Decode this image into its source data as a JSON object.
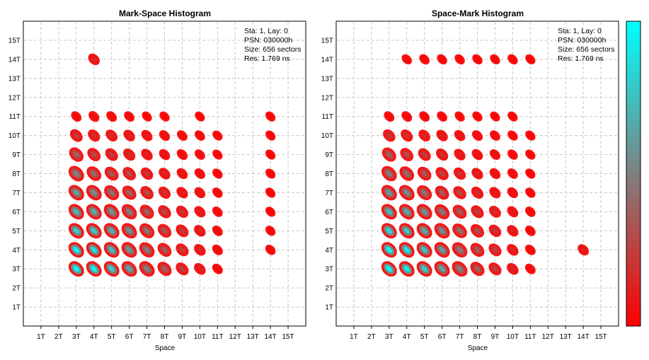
{
  "chart_data": [
    {
      "type": "heatmap",
      "title": "Mark-Space Histogram",
      "xlabel": "Space",
      "ylabel": "",
      "x_ticks": [
        "1T",
        "2T",
        "3T",
        "4T",
        "5T",
        "6T",
        "7T",
        "8T",
        "9T",
        "10T",
        "11T",
        "12T",
        "13T",
        "14T",
        "15T"
      ],
      "y_ticks": [
        "1T",
        "2T",
        "3T",
        "4T",
        "5T",
        "6T",
        "7T",
        "8T",
        "9T",
        "10T",
        "11T",
        "12T",
        "13T",
        "14T",
        "15T"
      ],
      "xlim": [
        0,
        16
      ],
      "ylim": [
        0,
        16
      ],
      "grid": true,
      "info_lines": [
        "Sta: 1, Lay: 0",
        "PSN: 030000h",
        "Size: 656 sectors",
        "Res: 1.769 ns"
      ],
      "clusters": [
        {
          "x": 4,
          "y": 14,
          "intensity": 0.15
        },
        {
          "x": 3,
          "y": 11,
          "intensity": 0.05
        },
        {
          "x": 4,
          "y": 11,
          "intensity": 0.08
        },
        {
          "x": 5,
          "y": 11,
          "intensity": 0.06
        },
        {
          "x": 6,
          "y": 11,
          "intensity": 0.05
        },
        {
          "x": 7,
          "y": 11,
          "intensity": 0.02
        },
        {
          "x": 8,
          "y": 11,
          "intensity": 0.02
        },
        {
          "x": 10,
          "y": 11,
          "intensity": 0.01
        },
        {
          "x": 14,
          "y": 11,
          "intensity": 0.02
        },
        {
          "x": 3,
          "y": 10,
          "intensity": 0.25
        },
        {
          "x": 4,
          "y": 10,
          "intensity": 0.2
        },
        {
          "x": 5,
          "y": 10,
          "intensity": 0.18
        },
        {
          "x": 6,
          "y": 10,
          "intensity": 0.15
        },
        {
          "x": 7,
          "y": 10,
          "intensity": 0.12
        },
        {
          "x": 8,
          "y": 10,
          "intensity": 0.08
        },
        {
          "x": 9,
          "y": 10,
          "intensity": 0.06
        },
        {
          "x": 10,
          "y": 10,
          "intensity": 0.04
        },
        {
          "x": 11,
          "y": 10,
          "intensity": 0.02
        },
        {
          "x": 14,
          "y": 10,
          "intensity": 0.02
        },
        {
          "x": 3,
          "y": 9,
          "intensity": 0.4
        },
        {
          "x": 4,
          "y": 9,
          "intensity": 0.3
        },
        {
          "x": 5,
          "y": 9,
          "intensity": 0.25
        },
        {
          "x": 6,
          "y": 9,
          "intensity": 0.2
        },
        {
          "x": 7,
          "y": 9,
          "intensity": 0.15
        },
        {
          "x": 8,
          "y": 9,
          "intensity": 0.1
        },
        {
          "x": 9,
          "y": 9,
          "intensity": 0.08
        },
        {
          "x": 10,
          "y": 9,
          "intensity": 0.05
        },
        {
          "x": 11,
          "y": 9,
          "intensity": 0.02
        },
        {
          "x": 14,
          "y": 9,
          "intensity": 0.02
        },
        {
          "x": 3,
          "y": 8,
          "intensity": 0.5
        },
        {
          "x": 4,
          "y": 8,
          "intensity": 0.42
        },
        {
          "x": 5,
          "y": 8,
          "intensity": 0.35
        },
        {
          "x": 6,
          "y": 8,
          "intensity": 0.3
        },
        {
          "x": 7,
          "y": 8,
          "intensity": 0.22
        },
        {
          "x": 8,
          "y": 8,
          "intensity": 0.15
        },
        {
          "x": 9,
          "y": 8,
          "intensity": 0.1
        },
        {
          "x": 10,
          "y": 8,
          "intensity": 0.07
        },
        {
          "x": 11,
          "y": 8,
          "intensity": 0.03
        },
        {
          "x": 14,
          "y": 8,
          "intensity": 0.02
        },
        {
          "x": 3,
          "y": 7,
          "intensity": 0.62
        },
        {
          "x": 4,
          "y": 7,
          "intensity": 0.55
        },
        {
          "x": 5,
          "y": 7,
          "intensity": 0.45
        },
        {
          "x": 6,
          "y": 7,
          "intensity": 0.38
        },
        {
          "x": 7,
          "y": 7,
          "intensity": 0.3
        },
        {
          "x": 8,
          "y": 7,
          "intensity": 0.2
        },
        {
          "x": 9,
          "y": 7,
          "intensity": 0.14
        },
        {
          "x": 10,
          "y": 7,
          "intensity": 0.1
        },
        {
          "x": 11,
          "y": 7,
          "intensity": 0.04
        },
        {
          "x": 14,
          "y": 7,
          "intensity": 0.02
        },
        {
          "x": 3,
          "y": 6,
          "intensity": 0.72
        },
        {
          "x": 4,
          "y": 6,
          "intensity": 0.68
        },
        {
          "x": 5,
          "y": 6,
          "intensity": 0.58
        },
        {
          "x": 6,
          "y": 6,
          "intensity": 0.48
        },
        {
          "x": 7,
          "y": 6,
          "intensity": 0.38
        },
        {
          "x": 8,
          "y": 6,
          "intensity": 0.28
        },
        {
          "x": 9,
          "y": 6,
          "intensity": 0.2
        },
        {
          "x": 10,
          "y": 6,
          "intensity": 0.12
        },
        {
          "x": 11,
          "y": 6,
          "intensity": 0.05
        },
        {
          "x": 14,
          "y": 6,
          "intensity": 0.02
        },
        {
          "x": 3,
          "y": 5,
          "intensity": 0.82
        },
        {
          "x": 4,
          "y": 5,
          "intensity": 0.78
        },
        {
          "x": 5,
          "y": 5,
          "intensity": 0.68
        },
        {
          "x": 6,
          "y": 5,
          "intensity": 0.56
        },
        {
          "x": 7,
          "y": 5,
          "intensity": 0.45
        },
        {
          "x": 8,
          "y": 5,
          "intensity": 0.34
        },
        {
          "x": 9,
          "y": 5,
          "intensity": 0.25
        },
        {
          "x": 10,
          "y": 5,
          "intensity": 0.15
        },
        {
          "x": 11,
          "y": 5,
          "intensity": 0.06
        },
        {
          "x": 14,
          "y": 5,
          "intensity": 0.03
        },
        {
          "x": 3,
          "y": 4,
          "intensity": 0.95
        },
        {
          "x": 4,
          "y": 4,
          "intensity": 0.88
        },
        {
          "x": 5,
          "y": 4,
          "intensity": 0.74
        },
        {
          "x": 6,
          "y": 4,
          "intensity": 0.6
        },
        {
          "x": 7,
          "y": 4,
          "intensity": 0.48
        },
        {
          "x": 8,
          "y": 4,
          "intensity": 0.36
        },
        {
          "x": 9,
          "y": 4,
          "intensity": 0.26
        },
        {
          "x": 10,
          "y": 4,
          "intensity": 0.16
        },
        {
          "x": 11,
          "y": 4,
          "intensity": 0.07
        },
        {
          "x": 14,
          "y": 4,
          "intensity": 0.04
        },
        {
          "x": 3,
          "y": 3,
          "intensity": 0.98
        },
        {
          "x": 4,
          "y": 3,
          "intensity": 0.96
        },
        {
          "x": 5,
          "y": 3,
          "intensity": 0.82
        },
        {
          "x": 6,
          "y": 3,
          "intensity": 0.66
        },
        {
          "x": 7,
          "y": 3,
          "intensity": 0.5
        },
        {
          "x": 8,
          "y": 3,
          "intensity": 0.38
        },
        {
          "x": 9,
          "y": 3,
          "intensity": 0.26
        },
        {
          "x": 10,
          "y": 3,
          "intensity": 0.16
        },
        {
          "x": 11,
          "y": 3,
          "intensity": 0.06
        }
      ]
    },
    {
      "type": "heatmap",
      "title": "Space-Mark Histogram",
      "xlabel": "Space",
      "ylabel": "",
      "x_ticks": [
        "1T",
        "2T",
        "3T",
        "4T",
        "5T",
        "6T",
        "7T",
        "8T",
        "9T",
        "10T",
        "11T",
        "12T",
        "13T",
        "14T",
        "15T"
      ],
      "y_ticks": [
        "1T",
        "2T",
        "3T",
        "4T",
        "5T",
        "6T",
        "7T",
        "8T",
        "9T",
        "10T",
        "11T",
        "12T",
        "13T",
        "14T",
        "15T"
      ],
      "xlim": [
        0,
        16
      ],
      "ylim": [
        0,
        16
      ],
      "grid": true,
      "info_lines": [
        "Sta: 1, Lay: 0",
        "PSN: 030000h",
        "Size: 656 sectors",
        "Res: 1.769 ns"
      ],
      "clusters": [
        {
          "x": 4,
          "y": 14,
          "intensity": 0.03
        },
        {
          "x": 5,
          "y": 14,
          "intensity": 0.04
        },
        {
          "x": 6,
          "y": 14,
          "intensity": 0.03
        },
        {
          "x": 7,
          "y": 14,
          "intensity": 0.03
        },
        {
          "x": 8,
          "y": 14,
          "intensity": 0.03
        },
        {
          "x": 9,
          "y": 14,
          "intensity": 0.02
        },
        {
          "x": 10,
          "y": 14,
          "intensity": 0.03
        },
        {
          "x": 11,
          "y": 14,
          "intensity": 0.02
        },
        {
          "x": 3,
          "y": 11,
          "intensity": 0.05
        },
        {
          "x": 4,
          "y": 11,
          "intensity": 0.06
        },
        {
          "x": 5,
          "y": 11,
          "intensity": 0.05
        },
        {
          "x": 6,
          "y": 11,
          "intensity": 0.04
        },
        {
          "x": 7,
          "y": 11,
          "intensity": 0.02
        },
        {
          "x": 8,
          "y": 11,
          "intensity": 0.02
        },
        {
          "x": 9,
          "y": 11,
          "intensity": 0.01
        },
        {
          "x": 10,
          "y": 11,
          "intensity": 0.01
        },
        {
          "x": 3,
          "y": 10,
          "intensity": 0.22
        },
        {
          "x": 4,
          "y": 10,
          "intensity": 0.2
        },
        {
          "x": 5,
          "y": 10,
          "intensity": 0.17
        },
        {
          "x": 6,
          "y": 10,
          "intensity": 0.14
        },
        {
          "x": 7,
          "y": 10,
          "intensity": 0.1
        },
        {
          "x": 8,
          "y": 10,
          "intensity": 0.07
        },
        {
          "x": 9,
          "y": 10,
          "intensity": 0.05
        },
        {
          "x": 10,
          "y": 10,
          "intensity": 0.03
        },
        {
          "x": 11,
          "y": 10,
          "intensity": 0.02
        },
        {
          "x": 3,
          "y": 9,
          "intensity": 0.38
        },
        {
          "x": 4,
          "y": 9,
          "intensity": 0.3
        },
        {
          "x": 5,
          "y": 9,
          "intensity": 0.25
        },
        {
          "x": 6,
          "y": 9,
          "intensity": 0.2
        },
        {
          "x": 7,
          "y": 9,
          "intensity": 0.14
        },
        {
          "x": 8,
          "y": 9,
          "intensity": 0.1
        },
        {
          "x": 9,
          "y": 9,
          "intensity": 0.07
        },
        {
          "x": 10,
          "y": 9,
          "intensity": 0.04
        },
        {
          "x": 11,
          "y": 9,
          "intensity": 0.02
        },
        {
          "x": 3,
          "y": 8,
          "intensity": 0.48
        },
        {
          "x": 4,
          "y": 8,
          "intensity": 0.42
        },
        {
          "x": 5,
          "y": 8,
          "intensity": 0.35
        },
        {
          "x": 6,
          "y": 8,
          "intensity": 0.28
        },
        {
          "x": 7,
          "y": 8,
          "intensity": 0.2
        },
        {
          "x": 8,
          "y": 8,
          "intensity": 0.14
        },
        {
          "x": 9,
          "y": 8,
          "intensity": 0.09
        },
        {
          "x": 10,
          "y": 8,
          "intensity": 0.06
        },
        {
          "x": 11,
          "y": 8,
          "intensity": 0.02
        },
        {
          "x": 3,
          "y": 7,
          "intensity": 0.6
        },
        {
          "x": 4,
          "y": 7,
          "intensity": 0.54
        },
        {
          "x": 5,
          "y": 7,
          "intensity": 0.45
        },
        {
          "x": 6,
          "y": 7,
          "intensity": 0.36
        },
        {
          "x": 7,
          "y": 7,
          "intensity": 0.28
        },
        {
          "x": 8,
          "y": 7,
          "intensity": 0.2
        },
        {
          "x": 9,
          "y": 7,
          "intensity": 0.13
        },
        {
          "x": 10,
          "y": 7,
          "intensity": 0.08
        },
        {
          "x": 11,
          "y": 7,
          "intensity": 0.03
        },
        {
          "x": 3,
          "y": 6,
          "intensity": 0.72
        },
        {
          "x": 4,
          "y": 6,
          "intensity": 0.66
        },
        {
          "x": 5,
          "y": 6,
          "intensity": 0.56
        },
        {
          "x": 6,
          "y": 6,
          "intensity": 0.46
        },
        {
          "x": 7,
          "y": 6,
          "intensity": 0.36
        },
        {
          "x": 8,
          "y": 6,
          "intensity": 0.26
        },
        {
          "x": 9,
          "y": 6,
          "intensity": 0.18
        },
        {
          "x": 10,
          "y": 6,
          "intensity": 0.11
        },
        {
          "x": 11,
          "y": 6,
          "intensity": 0.04
        },
        {
          "x": 3,
          "y": 5,
          "intensity": 0.84
        },
        {
          "x": 4,
          "y": 5,
          "intensity": 0.78
        },
        {
          "x": 5,
          "y": 5,
          "intensity": 0.66
        },
        {
          "x": 6,
          "y": 5,
          "intensity": 0.54
        },
        {
          "x": 7,
          "y": 5,
          "intensity": 0.42
        },
        {
          "x": 8,
          "y": 5,
          "intensity": 0.32
        },
        {
          "x": 9,
          "y": 5,
          "intensity": 0.22
        },
        {
          "x": 10,
          "y": 5,
          "intensity": 0.14
        },
        {
          "x": 11,
          "y": 5,
          "intensity": 0.05
        },
        {
          "x": 3,
          "y": 4,
          "intensity": 0.96
        },
        {
          "x": 4,
          "y": 4,
          "intensity": 0.9
        },
        {
          "x": 5,
          "y": 4,
          "intensity": 0.76
        },
        {
          "x": 6,
          "y": 4,
          "intensity": 0.62
        },
        {
          "x": 7,
          "y": 4,
          "intensity": 0.48
        },
        {
          "x": 8,
          "y": 4,
          "intensity": 0.36
        },
        {
          "x": 9,
          "y": 4,
          "intensity": 0.26
        },
        {
          "x": 10,
          "y": 4,
          "intensity": 0.16
        },
        {
          "x": 11,
          "y": 4,
          "intensity": 0.06
        },
        {
          "x": 14,
          "y": 4,
          "intensity": 0.12
        },
        {
          "x": 3,
          "y": 3,
          "intensity": 0.97
        },
        {
          "x": 4,
          "y": 3,
          "intensity": 0.92
        },
        {
          "x": 5,
          "y": 3,
          "intensity": 0.8
        },
        {
          "x": 6,
          "y": 3,
          "intensity": 0.64
        },
        {
          "x": 7,
          "y": 3,
          "intensity": 0.5
        },
        {
          "x": 8,
          "y": 3,
          "intensity": 0.38
        },
        {
          "x": 9,
          "y": 3,
          "intensity": 0.26
        },
        {
          "x": 10,
          "y": 3,
          "intensity": 0.16
        },
        {
          "x": 11,
          "y": 3,
          "intensity": 0.06
        }
      ]
    }
  ],
  "colorbar": {
    "stops": [
      "#ff0000",
      "#00ffff"
    ]
  }
}
